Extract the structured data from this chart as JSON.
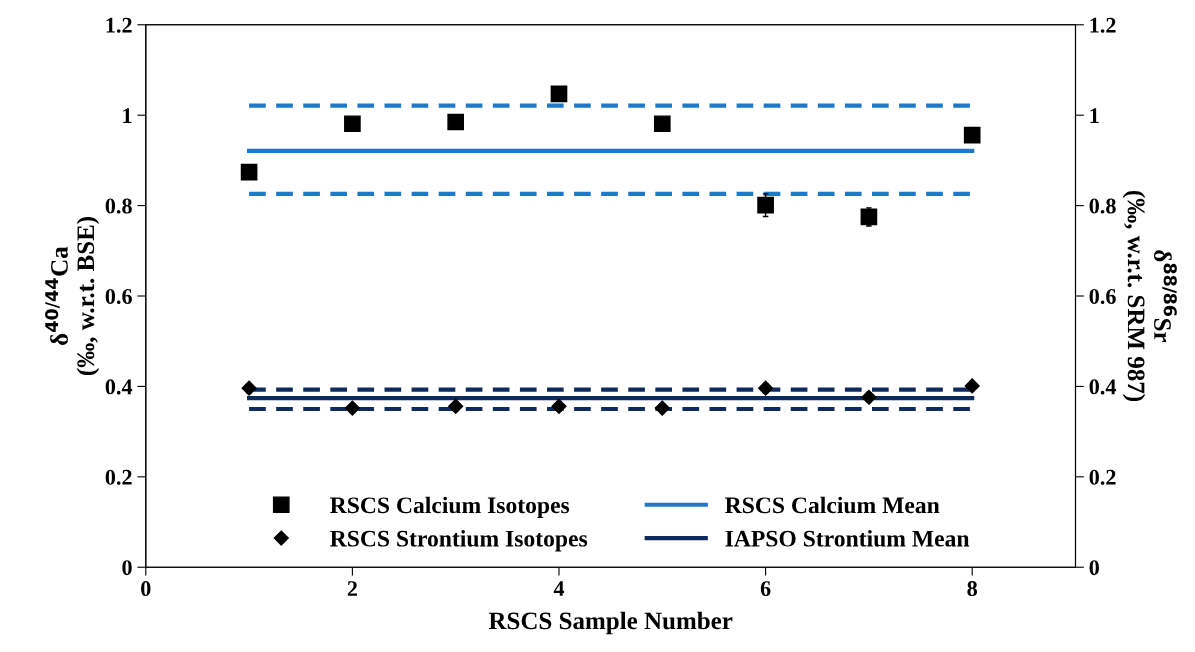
{
  "chart_data": {
    "type": "scatter",
    "xlabel": "RSCS Sample Number",
    "ylabel": "δ$^{40/44}$Ca\n(‰, w.r.t. BSE)",
    "y2label": "δ$^{88/86}$Sr\n(‰, w.r.t. SRM 987)",
    "xlim": [
      0,
      9
    ],
    "xticks": [
      0,
      2,
      4,
      6,
      8
    ],
    "ylim": [
      0,
      1.2
    ],
    "yticks": [
      0,
      0.2,
      0.4,
      0.6,
      0.8,
      1,
      1.2
    ],
    "y2lim": [
      0,
      1.2
    ],
    "y2ticks": [
      0,
      0.2,
      0.4,
      0.6,
      0.8,
      1,
      1.2
    ],
    "grid": false,
    "legend": "bottom",
    "series": [
      {
        "name": "RSCS Calcium Isotopes",
        "marker": "square",
        "color": "#000000",
        "x": [
          1,
          2,
          3,
          4,
          5,
          6,
          7,
          8
        ],
        "values": [
          0.874,
          0.981,
          0.985,
          1.047,
          0.981,
          0.801,
          0.775,
          0.956
        ],
        "errors": [
          0.01,
          0.01,
          0.01,
          0.01,
          0.01,
          0.025,
          0.02,
          0.01
        ]
      },
      {
        "name": "RSCS Strontium Isotopes",
        "marker": "diamond",
        "color": "#000000",
        "x": [
          1,
          2,
          3,
          4,
          5,
          6,
          7,
          8
        ],
        "values": [
          0.396,
          0.352,
          0.356,
          0.356,
          0.352,
          0.396,
          0.376,
          0.401
        ],
        "errors": [
          0.01,
          0.01,
          0.01,
          0.01,
          0.01,
          0.01,
          0.01,
          0.01
        ]
      },
      {
        "name": "RSCS Calcium Mean",
        "type": "line",
        "line_style": "solid",
        "color": "#1f78c8",
        "x": [
          1,
          8
        ],
        "values": [
          0.921,
          0.921
        ]
      },
      {
        "type": "line",
        "line_style": "dashed",
        "color": "#1f78c8",
        "x": [
          1,
          8
        ],
        "values": [
          1.021,
          1.021
        ]
      },
      {
        "type": "line",
        "line_style": "dashed",
        "color": "#1f78c8",
        "x": [
          1,
          8
        ],
        "values": [
          0.826,
          0.826
        ]
      },
      {
        "name": "IAPSO Strontium Mean",
        "type": "line",
        "line_style": "solid",
        "color": "#0f2a5c",
        "x": [
          1,
          8
        ],
        "values": [
          0.374,
          0.374
        ]
      },
      {
        "type": "line",
        "line_style": "dashed",
        "color": "#0f2a5c",
        "x": [
          1,
          8
        ],
        "values": [
          0.393,
          0.393
        ]
      },
      {
        "type": "line",
        "line_style": "dashed",
        "color": "#0f2a5c",
        "x": [
          1,
          8
        ],
        "values": [
          0.35,
          0.35
        ]
      }
    ]
  }
}
